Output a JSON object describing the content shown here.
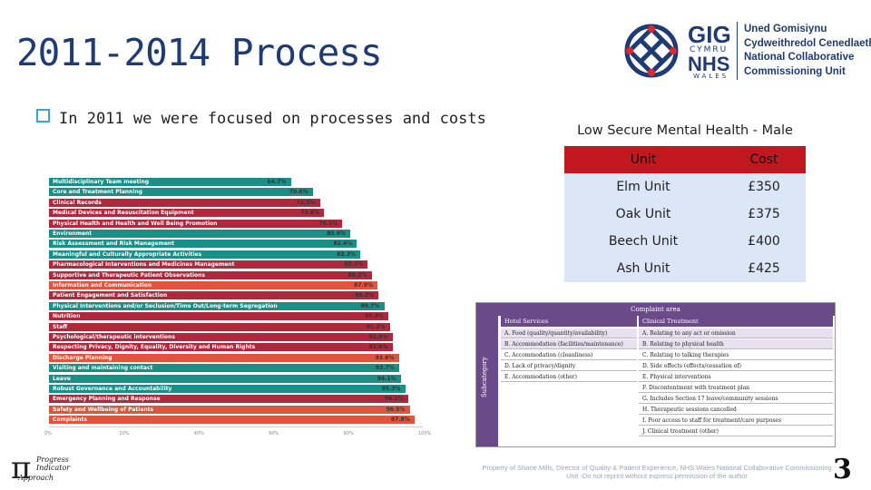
{
  "slide": {
    "title": "2011-2014 Process",
    "bullet": "In 2011 we were focused on processes and costs",
    "page_number": "3",
    "footnote": "Property of Shane Mills, Director of Quality & Patient Experience, NHS Wales National Collaborative Commissioning Unit -Do not reprint without express permission of the author"
  },
  "logo": {
    "gig": "GIG",
    "cymru": "CYMRU",
    "nhs": "NHS",
    "wales": "WALES",
    "line1": "Uned Gomisiynu",
    "line2": "Cydweithredol Cenedlaethol",
    "line3": "National Collaborative",
    "line4": "Commissioning Unit"
  },
  "cost_table": {
    "caption": "Low Secure Mental Health - Male",
    "col_unit": "Unit",
    "col_cost": "Cost",
    "rows": [
      {
        "unit": "Elm Unit",
        "cost": "£350"
      },
      {
        "unit": "Oak Unit",
        "cost": "£375"
      },
      {
        "unit": "Beech Unit",
        "cost": "£400"
      },
      {
        "unit": "Ash Unit",
        "cost": "£425"
      }
    ]
  },
  "chart_data": {
    "type": "bar",
    "orientation": "horizontal",
    "xlim": [
      0,
      100
    ],
    "x_ticks": [
      "0%",
      "20%",
      "40%",
      "60%",
      "80%",
      "100%"
    ],
    "categories": [
      "Multidisciplinary Team meeting",
      "Core and Treatment Planning",
      "Clinical Records",
      "Medical Devices and Resuscitation Equipment",
      "Physical Health and Health and Well Being Promotion",
      "Environment",
      "Risk Assessment and Risk Management",
      "Meaningful and Culturally Appropriate Activities",
      "Pharmacological Interventions and Medicines Management",
      "Supportive and Therapeutic Patient Observations",
      "Information and Communication",
      "Patient Engagement and Satisfaction",
      "Physical Interventions and/or Seclusion/Time Out/Long-term Segregation",
      "Nutrition",
      "Staff",
      "Psychological/therapeutic interventions",
      "Respecting Privacy, Dignity, Equality, Diversity and Human Rights",
      "Discharge Planning",
      "Visiting and maintaining contact",
      "Leave",
      "Robust Governance and Accountability",
      "Emergency Planning and Response",
      "Safety and Wellbeing of Patients",
      "Complaints"
    ],
    "values": [
      64.7,
      70.6,
      72.5,
      73.6,
      78.5,
      80.6,
      82.4,
      83.3,
      85.3,
      86.3,
      87.9,
      88.2,
      89.7,
      90.8,
      91.2,
      91.9,
      91.9,
      93.6,
      93.7,
      94.1,
      95.3,
      96.1,
      96.5,
      97.8
    ],
    "labels": [
      "64.7%",
      "70.6%",
      "72.5%",
      "73.6%",
      "78.5%",
      "80.6%",
      "82.4%",
      "83.3%",
      "85.3%",
      "86.3%",
      "87.9%",
      "88.2%",
      "89.7%",
      "90.8%",
      "91.2%",
      "91.9%",
      "91.9%",
      "93.6%",
      "93.7%",
      "94.1%",
      "95.3%",
      "96.1%",
      "96.5%",
      "97.8%"
    ],
    "colors": [
      "#1a8f86",
      "#1a8f86",
      "#b0283b",
      "#b0283b",
      "#b0283b",
      "#1a8f86",
      "#1a8f86",
      "#1a8f86",
      "#b0283b",
      "#b0283b",
      "#e0533c",
      "#b0283b",
      "#1a8f86",
      "#b0283b",
      "#b0283b",
      "#b0283b",
      "#b0283b",
      "#e0533c",
      "#1a8f86",
      "#1a8f86",
      "#1a8f86",
      "#b0283b",
      "#e0533c",
      "#e0533c"
    ]
  },
  "complaint_table": {
    "header": "Complaint area",
    "side_label": "Subcategory",
    "col1": "Hotel Services",
    "col2": "Clinical Treatment",
    "col1_items": [
      "A. Food (quality/quantity/availability)",
      "B. Accommodation (facilities/maintenance)",
      "C. Accommodation (cleanliness)",
      "D. Lack of privacy/dignity",
      "E. Accommodation (other)"
    ],
    "col2_items": [
      "A. Relating to any act or omission",
      "B. Relating to physical health",
      "C. Relating to talking therapies",
      "D. Side effects (effects/cessation of)",
      "E. Physical interventions",
      "F. Discontentment with treatment plan",
      "G. Includes Section 17 leave/community sessions",
      "H. Therapeutic sessions cancelled",
      "I. Poor access to staff for treatment/care purposes",
      "J. Clinical treatment (other)"
    ]
  },
  "pi_logo": {
    "line1": "Progress",
    "line2": "Indicator",
    "line3": "Approach"
  }
}
